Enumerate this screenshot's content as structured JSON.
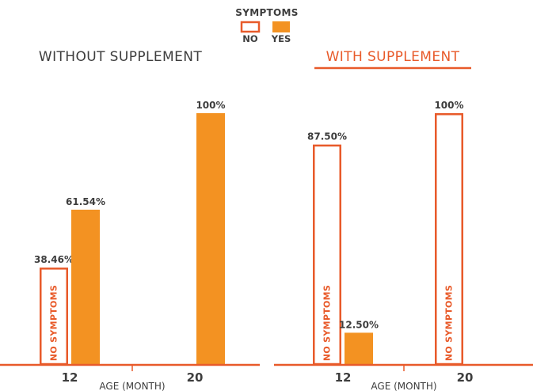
{
  "colors": {
    "no": "#e85a2a",
    "yes": "#f39222",
    "axis": "#e85a2a",
    "text": "#3d3d3d"
  },
  "legend": {
    "title": "SYMPTOMS",
    "items": [
      {
        "key": "no",
        "label": "NO",
        "style": "outline"
      },
      {
        "key": "yes",
        "label": "YES",
        "style": "filled"
      }
    ]
  },
  "chart_data": [
    {
      "type": "bar",
      "title": "WITHOUT SUPPLEMENT",
      "title_highlight": false,
      "xlabel": "AGE (MONTH)",
      "ylabel": "",
      "ylim": [
        0,
        100
      ],
      "categories": [
        "12",
        "20"
      ],
      "series": [
        {
          "name": "NO",
          "values": [
            38.46,
            0
          ],
          "labels": [
            "38.46%",
            ""
          ]
        },
        {
          "name": "YES",
          "values": [
            61.54,
            100
          ],
          "labels": [
            "61.54%",
            "100%"
          ]
        }
      ],
      "bar_text": [
        "NO SYMPTOMS",
        ""
      ]
    },
    {
      "type": "bar",
      "title": "WITH SUPPLEMENT",
      "title_highlight": true,
      "xlabel": "AGE (MONTH)",
      "ylabel": "",
      "ylim": [
        0,
        100
      ],
      "categories": [
        "12",
        "20"
      ],
      "series": [
        {
          "name": "NO",
          "values": [
            87.5,
            100
          ],
          "labels": [
            "87.50%",
            "100%"
          ]
        },
        {
          "name": "YES",
          "values": [
            12.5,
            0
          ],
          "labels": [
            "12.50%",
            ""
          ]
        }
      ],
      "bar_text": [
        "NO SYMPTOMS",
        "NO SYMPTOMS"
      ]
    }
  ]
}
